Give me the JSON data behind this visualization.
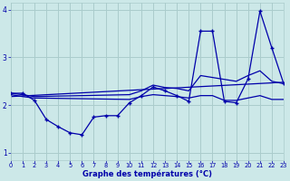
{
  "xlabel": "Graphe des températures (°C)",
  "background_color": "#cce8e8",
  "grid_color": "#aacccc",
  "line_color": "#0000aa",
  "xlim": [
    0,
    23
  ],
  "ylim": [
    0.85,
    4.15
  ],
  "yticks": [
    1,
    2,
    3,
    4
  ],
  "xticks": [
    0,
    1,
    2,
    3,
    4,
    5,
    6,
    7,
    8,
    9,
    10,
    11,
    12,
    13,
    14,
    15,
    16,
    17,
    18,
    19,
    20,
    21,
    22,
    23
  ],
  "main_x": [
    0,
    1,
    2,
    3,
    4,
    5,
    6,
    7,
    8,
    9,
    10,
    11,
    12,
    13,
    14,
    15,
    16,
    17,
    18,
    19,
    20,
    21,
    22,
    23
  ],
  "main_y": [
    2.25,
    2.25,
    2.1,
    1.7,
    1.55,
    1.42,
    1.38,
    1.75,
    1.78,
    1.78,
    2.05,
    2.2,
    2.38,
    2.3,
    2.2,
    2.08,
    3.55,
    3.55,
    2.08,
    2.05,
    2.55,
    3.97,
    3.2,
    2.45
  ],
  "trend_x": [
    0,
    23
  ],
  "trend_y": [
    2.18,
    2.48
  ],
  "smooth1_x": [
    0,
    1,
    2,
    10,
    11,
    12,
    13,
    14,
    15,
    16,
    19,
    20,
    21,
    22,
    23
  ],
  "smooth1_y": [
    2.25,
    2.22,
    2.18,
    2.22,
    2.3,
    2.42,
    2.37,
    2.35,
    2.3,
    2.62,
    2.5,
    2.62,
    2.72,
    2.5,
    2.45
  ],
  "smooth2_x": [
    0,
    1,
    2,
    10,
    11,
    12,
    13,
    14,
    15,
    16,
    17,
    18,
    19,
    20,
    21,
    22,
    23
  ],
  "smooth2_y": [
    2.22,
    2.18,
    2.15,
    2.12,
    2.18,
    2.22,
    2.2,
    2.18,
    2.15,
    2.2,
    2.2,
    2.1,
    2.1,
    2.15,
    2.2,
    2.12,
    2.12
  ]
}
